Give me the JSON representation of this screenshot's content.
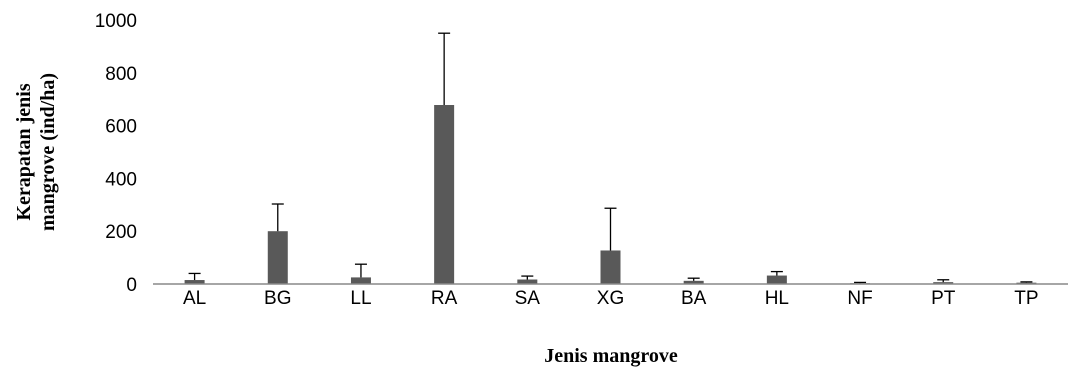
{
  "chart_data": {
    "type": "bar",
    "title": "",
    "xlabel": "Jenis mangrove",
    "ylabel_lines": [
      "Kerapatan jenis",
      "mangrove (ind/ha)"
    ],
    "categories": [
      "AL",
      "BG",
      "LL",
      "RA",
      "SA",
      "XG",
      "BA",
      "HL",
      "NF",
      "PT",
      "TP"
    ],
    "series": [
      {
        "values": [
          15,
          200,
          25,
          678,
          17,
          127,
          12,
          32,
          3,
          7,
          5
        ],
        "error_plus": [
          25,
          103,
          50,
          272,
          13,
          160,
          10,
          15,
          3,
          9,
          3
        ]
      }
    ],
    "ylim": [
      0,
      1000
    ],
    "yticks": [
      0,
      200,
      400,
      600,
      800,
      1000
    ],
    "grid": false,
    "legend": "none",
    "bar_color": "#595959",
    "axis_color": "#898989"
  }
}
